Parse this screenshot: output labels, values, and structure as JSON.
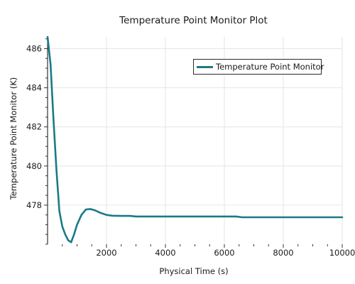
{
  "chart_data": {
    "type": "line",
    "title": "Temperature Point Monitor Plot",
    "xlabel": "Physical Time (s)",
    "ylabel": "Temperature Point Monitor (K)",
    "xlim": [
      0,
      10000
    ],
    "ylim": [
      476,
      486.6
    ],
    "x_ticks": [
      2000,
      4000,
      6000,
      8000,
      10000
    ],
    "x_tick_labels": [
      "2000",
      "4000",
      "6000",
      "8000",
      "10000"
    ],
    "y_ticks": [
      478,
      480,
      482,
      484,
      486
    ],
    "y_tick_labels": [
      "478",
      "480",
      "482",
      "484",
      "486"
    ],
    "grid": true,
    "legend_position": "top-right",
    "series": [
      {
        "name": "Temperature Point Monitor",
        "color": "#1b7a86",
        "points": [
          [
            0,
            486.6
          ],
          [
            100,
            485.2
          ],
          [
            200,
            482.4
          ],
          [
            300,
            479.8
          ],
          [
            400,
            477.7
          ],
          [
            500,
            476.9
          ],
          [
            600,
            476.5
          ],
          [
            700,
            476.2
          ],
          [
            800,
            476.1
          ],
          [
            900,
            476.5
          ],
          [
            1000,
            477.0
          ],
          [
            1150,
            477.5
          ],
          [
            1300,
            477.78
          ],
          [
            1450,
            477.8
          ],
          [
            1600,
            477.74
          ],
          [
            1800,
            477.6
          ],
          [
            2000,
            477.5
          ],
          [
            2200,
            477.46
          ],
          [
            2500,
            477.45
          ],
          [
            2800,
            477.45
          ],
          [
            3000,
            477.42
          ],
          [
            4000,
            477.42
          ],
          [
            5000,
            477.42
          ],
          [
            6000,
            477.42
          ],
          [
            6400,
            477.42
          ],
          [
            6600,
            477.38
          ],
          [
            7000,
            477.38
          ],
          [
            8000,
            477.38
          ],
          [
            9000,
            477.38
          ],
          [
            10000,
            477.38
          ]
        ]
      }
    ]
  }
}
